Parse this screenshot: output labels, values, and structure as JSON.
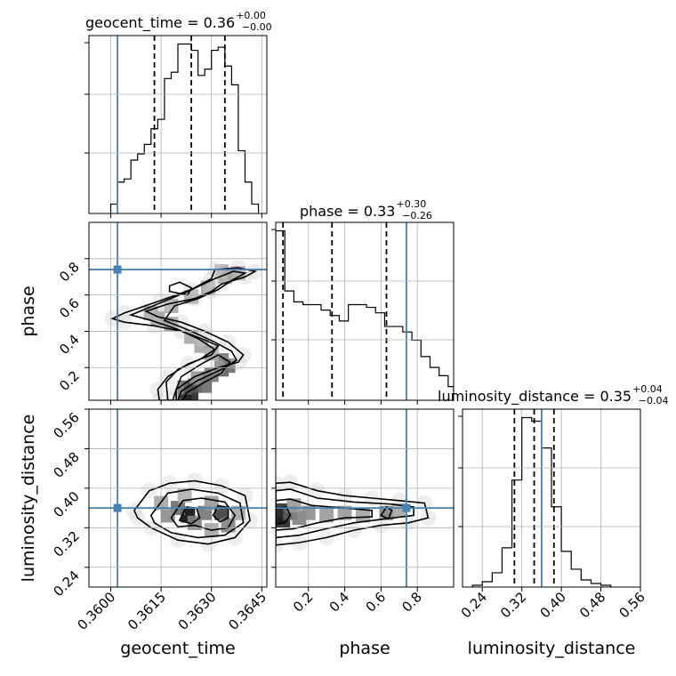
{
  "chart_data": {
    "type": "corner",
    "parameters": [
      "geocent_time",
      "phase",
      "luminosity_distance"
    ],
    "axes_labels": {
      "geocent_time": "geocent_time",
      "phase": "phase",
      "luminosity_distance": "luminosity_distance"
    },
    "ranges": {
      "geocent_time": [
        0.35935,
        0.36465
      ],
      "phase": [
        0.02,
        1.0
      ],
      "luminosity_distance": [
        0.2,
        0.56
      ]
    },
    "ticks": {
      "geocent_time": [
        "0.3600",
        "0.3615",
        "0.3630",
        "0.3645"
      ],
      "phase": [
        "0.2",
        "0.4",
        "0.6",
        "0.8"
      ],
      "luminosity_distance": [
        "0.24",
        "0.32",
        "0.40",
        "0.48",
        "0.56"
      ]
    },
    "truths": {
      "geocent_time": 0.3602,
      "phase": 0.74,
      "luminosity_distance": 0.36
    },
    "titles": {
      "geocent_time": {
        "name": "geocent_time",
        "median": "0.36",
        "plus": "+0.00",
        "minus": "−0.00"
      },
      "phase": {
        "name": "phase",
        "median": "0.33",
        "plus": "+0.30",
        "minus": "−0.26"
      },
      "luminosity_distance": {
        "name": "luminosity_distance",
        "median": "0.35",
        "plus": "+0.04",
        "minus": "−0.04"
      }
    },
    "quantiles": {
      "geocent_time": [
        0.3613,
        0.3624,
        0.3634
      ],
      "phase": [
        0.06,
        0.33,
        0.63
      ],
      "luminosity_distance": [
        0.305,
        0.345,
        0.385
      ]
    },
    "histograms": {
      "geocent_time": {
        "edges": [
          0.36,
          0.3602,
          0.3604,
          0.3606,
          0.3608,
          0.361,
          0.3612,
          0.3614,
          0.3616,
          0.3618,
          0.362,
          0.3622,
          0.3624,
          0.3626,
          0.3628,
          0.363,
          0.3632,
          0.3634,
          0.3636,
          0.3638,
          0.364,
          0.3642,
          0.3644
        ],
        "counts": [
          3,
          10,
          11,
          17,
          19,
          22,
          27,
          30,
          43,
          45,
          54,
          54,
          52,
          44,
          46,
          52,
          53,
          47,
          41,
          20,
          10,
          3
        ]
      },
      "phase": {
        "edges": [
          0.02,
          0.07,
          0.12,
          0.17,
          0.22,
          0.27,
          0.32,
          0.37,
          0.42,
          0.47,
          0.52,
          0.57,
          0.62,
          0.67,
          0.72,
          0.77,
          0.82,
          0.87,
          0.92,
          0.97,
          1.0
        ],
        "counts": [
          62,
          40,
          36,
          35,
          35,
          33,
          31,
          29,
          35,
          35,
          34,
          32,
          27,
          27,
          25,
          22,
          16,
          12,
          9,
          5
        ]
      },
      "luminosity_distance": {
        "edges": [
          0.22,
          0.24,
          0.26,
          0.28,
          0.3,
          0.32,
          0.34,
          0.36,
          0.38,
          0.4,
          0.42,
          0.44,
          0.46,
          0.48,
          0.5
        ],
        "counts": [
          1,
          3,
          8,
          22,
          60,
          95,
          93,
          78,
          45,
          20,
          10,
          4,
          2,
          1
        ]
      }
    },
    "pairs": [
      {
        "x": "geocent_time",
        "y": "phase",
        "contours": [
          [
            [
              0.36185,
              0.02
            ],
            [
              0.36195,
              0.08
            ],
            [
              0.3625,
              0.15
            ],
            [
              0.3632,
              0.2
            ],
            [
              0.3638,
              0.23
            ],
            [
              0.36395,
              0.27
            ],
            [
              0.3635,
              0.34
            ],
            [
              0.3628,
              0.4
            ],
            [
              0.3621,
              0.45
            ],
            [
              0.3614,
              0.48
            ],
            [
              0.36105,
              0.51
            ],
            [
              0.3617,
              0.55
            ],
            [
              0.3625,
              0.58
            ],
            [
              0.363,
              0.62
            ],
            [
              0.3633,
              0.66
            ],
            [
              0.364,
              0.7
            ],
            [
              0.3643,
              0.73
            ],
            [
              0.3638,
              0.75
            ],
            [
              0.3631,
              0.74
            ],
            [
              0.363,
              0.69
            ],
            [
              0.3624,
              0.63
            ],
            [
              0.3615,
              0.57
            ],
            [
              0.3604,
              0.5
            ],
            [
              0.36005,
              0.47
            ],
            [
              0.3604,
              0.45
            ],
            [
              0.3613,
              0.43
            ],
            [
              0.3621,
              0.4
            ],
            [
              0.3627,
              0.36
            ],
            [
              0.3632,
              0.32
            ],
            [
              0.363,
              0.27
            ],
            [
              0.3623,
              0.22
            ],
            [
              0.3617,
              0.15
            ],
            [
              0.3614,
              0.08
            ],
            [
              0.36145,
              0.02
            ]
          ],
          [
            [
              0.362,
              0.02
            ],
            [
              0.3621,
              0.07
            ],
            [
              0.3626,
              0.13
            ],
            [
              0.3633,
              0.19
            ],
            [
              0.36375,
              0.24
            ],
            [
              0.3636,
              0.29
            ],
            [
              0.3631,
              0.34
            ],
            [
              0.3624,
              0.4
            ],
            [
              0.3616,
              0.46
            ],
            [
              0.3619,
              0.54
            ],
            [
              0.3626,
              0.58
            ],
            [
              0.3632,
              0.63
            ],
            [
              0.3636,
              0.68
            ],
            [
              0.364,
              0.72
            ],
            [
              0.36365,
              0.73
            ],
            [
              0.3631,
              0.69
            ],
            [
              0.3623,
              0.62
            ],
            [
              0.3614,
              0.55
            ],
            [
              0.3606,
              0.49
            ],
            [
              0.3612,
              0.46
            ],
            [
              0.362,
              0.41
            ],
            [
              0.3626,
              0.36
            ],
            [
              0.3631,
              0.3
            ],
            [
              0.3627,
              0.25
            ],
            [
              0.362,
              0.19
            ],
            [
              0.36165,
              0.12
            ],
            [
              0.3617,
              0.02
            ]
          ],
          [
            [
              0.36215,
              0.02
            ],
            [
              0.36225,
              0.06
            ],
            [
              0.3628,
              0.12
            ],
            [
              0.3633,
              0.17
            ],
            [
              0.36355,
              0.23
            ],
            [
              0.3632,
              0.27
            ],
            [
              0.3627,
              0.22
            ],
            [
              0.3621,
              0.15
            ],
            [
              0.36195,
              0.08
            ],
            [
              0.36195,
              0.02
            ]
          ],
          [
            [
              0.36175,
              0.62
            ],
            [
              0.3623,
              0.6
            ],
            [
              0.3624,
              0.64
            ],
            [
              0.36205,
              0.67
            ],
            [
              0.36175,
              0.65
            ]
          ]
        ],
        "points": [
          [
            0.3622,
            0.05,
            0.9
          ],
          [
            0.3624,
            0.06,
            0.85
          ],
          [
            0.3622,
            0.09,
            0.6
          ],
          [
            0.3625,
            0.1,
            0.65
          ],
          [
            0.3628,
            0.1,
            0.55
          ],
          [
            0.3626,
            0.14,
            0.5
          ],
          [
            0.363,
            0.16,
            0.5
          ],
          [
            0.3633,
            0.19,
            0.6
          ],
          [
            0.3635,
            0.21,
            0.55
          ],
          [
            0.3633,
            0.24,
            0.5
          ],
          [
            0.363,
            0.28,
            0.4
          ],
          [
            0.3627,
            0.32,
            0.3
          ],
          [
            0.3624,
            0.37,
            0.3
          ],
          [
            0.3618,
            0.44,
            0.35
          ],
          [
            0.3614,
            0.47,
            0.4
          ],
          [
            0.3612,
            0.5,
            0.35
          ],
          [
            0.3618,
            0.54,
            0.3
          ],
          [
            0.3624,
            0.59,
            0.3
          ],
          [
            0.3629,
            0.64,
            0.3
          ],
          [
            0.3634,
            0.7,
            0.35
          ],
          [
            0.3638,
            0.72,
            0.3
          ],
          [
            0.3633,
            0.73,
            0.25
          ]
        ]
      },
      {
        "x": "geocent_time",
        "y": "luminosity_distance",
        "contours": [
          [
            [
              0.3607,
              0.355
            ],
            [
              0.36115,
              0.395
            ],
            [
              0.36175,
              0.41
            ],
            [
              0.3625,
              0.415
            ],
            [
              0.3633,
              0.405
            ],
            [
              0.364,
              0.385
            ],
            [
              0.36415,
              0.335
            ],
            [
              0.3637,
              0.3
            ],
            [
              0.3629,
              0.287
            ],
            [
              0.362,
              0.295
            ],
            [
              0.3612,
              0.32
            ],
            [
              0.3608,
              0.34
            ]
          ],
          [
            [
              0.3612,
              0.345
            ],
            [
              0.3617,
              0.39
            ],
            [
              0.3624,
              0.398
            ],
            [
              0.3632,
              0.39
            ],
            [
              0.36385,
              0.37
            ],
            [
              0.36395,
              0.33
            ],
            [
              0.3634,
              0.305
            ],
            [
              0.3626,
              0.3
            ],
            [
              0.3618,
              0.31
            ],
            [
              0.3613,
              0.33
            ]
          ],
          [
            [
              0.3618,
              0.34
            ],
            [
              0.36215,
              0.375
            ],
            [
              0.3627,
              0.38
            ],
            [
              0.3634,
              0.372
            ],
            [
              0.3637,
              0.345
            ],
            [
              0.3635,
              0.32
            ],
            [
              0.363,
              0.315
            ],
            [
              0.3625,
              0.325
            ],
            [
              0.362,
              0.322
            ]
          ],
          [
            [
              0.36205,
              0.335
            ],
            [
              0.36225,
              0.362
            ],
            [
              0.36255,
              0.36
            ],
            [
              0.36265,
              0.34
            ],
            [
              0.3624,
              0.328
            ]
          ],
          [
            [
              0.36305,
              0.345
            ],
            [
              0.3632,
              0.365
            ],
            [
              0.3635,
              0.36
            ],
            [
              0.3635,
              0.34
            ],
            [
              0.36325,
              0.332
            ]
          ]
        ],
        "points": [
          [
            0.3623,
            0.345,
            0.95
          ],
          [
            0.3633,
            0.35,
            0.75
          ],
          [
            0.362,
            0.36,
            0.55
          ],
          [
            0.3628,
            0.35,
            0.5
          ],
          [
            0.3625,
            0.33,
            0.45
          ],
          [
            0.3617,
            0.345,
            0.4
          ],
          [
            0.3635,
            0.325,
            0.45
          ],
          [
            0.363,
            0.37,
            0.35
          ],
          [
            0.3615,
            0.37,
            0.3
          ],
          [
            0.3638,
            0.35,
            0.3
          ],
          [
            0.3622,
            0.385,
            0.25
          ],
          [
            0.363,
            0.315,
            0.3
          ]
        ]
      },
      {
        "x": "phase",
        "y": "luminosity_distance",
        "contours": [
          [
            [
              0.02,
              0.41
            ],
            [
              0.1,
              0.412
            ],
            [
              0.25,
              0.395
            ],
            [
              0.4,
              0.385
            ],
            [
              0.55,
              0.38
            ],
            [
              0.7,
              0.375
            ],
            [
              0.84,
              0.37
            ],
            [
              0.86,
              0.34
            ],
            [
              0.75,
              0.33
            ],
            [
              0.6,
              0.325
            ],
            [
              0.45,
              0.315
            ],
            [
              0.3,
              0.3
            ],
            [
              0.15,
              0.29
            ],
            [
              0.02,
              0.285
            ]
          ],
          [
            [
              0.02,
              0.395
            ],
            [
              0.1,
              0.398
            ],
            [
              0.25,
              0.38
            ],
            [
              0.45,
              0.372
            ],
            [
              0.65,
              0.368
            ],
            [
              0.78,
              0.362
            ],
            [
              0.78,
              0.345
            ],
            [
              0.6,
              0.337
            ],
            [
              0.45,
              0.33
            ],
            [
              0.3,
              0.318
            ],
            [
              0.15,
              0.305
            ],
            [
              0.02,
              0.3
            ]
          ],
          [
            [
              0.02,
              0.375
            ],
            [
              0.1,
              0.378
            ],
            [
              0.22,
              0.365
            ],
            [
              0.4,
              0.36
            ],
            [
              0.55,
              0.355
            ],
            [
              0.55,
              0.342
            ],
            [
              0.4,
              0.34
            ],
            [
              0.25,
              0.33
            ],
            [
              0.12,
              0.318
            ],
            [
              0.02,
              0.315
            ]
          ],
          [
            [
              0.02,
              0.36
            ],
            [
              0.08,
              0.362
            ],
            [
              0.1,
              0.345
            ],
            [
              0.07,
              0.33
            ],
            [
              0.02,
              0.328
            ]
          ],
          [
            [
              0.6,
              0.345
            ],
            [
              0.63,
              0.362
            ],
            [
              0.66,
              0.355
            ],
            [
              0.64,
              0.338
            ]
          ]
        ],
        "points": [
          [
            0.04,
            0.345,
            1.0
          ],
          [
            0.06,
            0.335,
            0.85
          ],
          [
            0.05,
            0.355,
            0.8
          ],
          [
            0.1,
            0.35,
            0.6
          ],
          [
            0.15,
            0.34,
            0.45
          ],
          [
            0.2,
            0.35,
            0.4
          ],
          [
            0.3,
            0.345,
            0.35
          ],
          [
            0.4,
            0.35,
            0.35
          ],
          [
            0.5,
            0.345,
            0.3
          ],
          [
            0.63,
            0.35,
            0.45
          ],
          [
            0.7,
            0.355,
            0.3
          ],
          [
            0.12,
            0.365,
            0.35
          ]
        ]
      }
    ]
  }
}
